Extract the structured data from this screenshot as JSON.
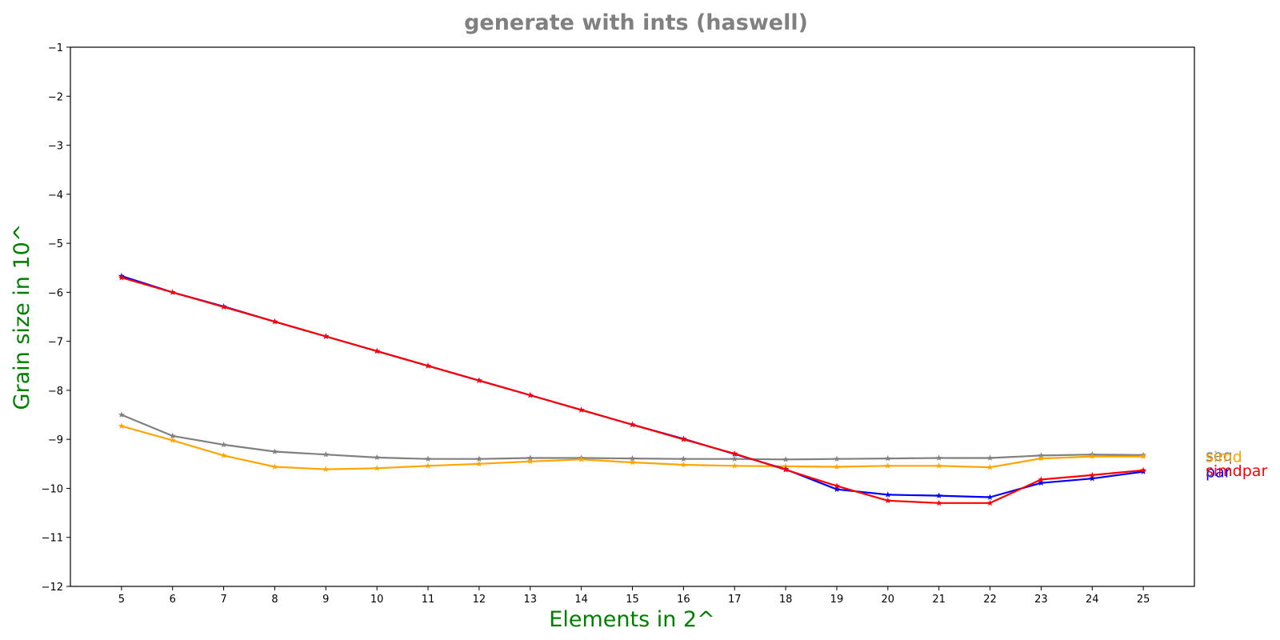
{
  "chart_data": {
    "type": "line",
    "title": "generate with ints  (haswell)",
    "xlabel": "Elements in 2^",
    "ylabel": "Grain size in 10^",
    "xlim": [
      4,
      26
    ],
    "ylim": [
      -12,
      -1
    ],
    "xticks": [
      5,
      6,
      7,
      8,
      9,
      10,
      11,
      12,
      13,
      14,
      15,
      16,
      17,
      18,
      19,
      20,
      21,
      22,
      23,
      24,
      25
    ],
    "yticks": [
      -1,
      -2,
      -3,
      -4,
      -5,
      -6,
      -7,
      -8,
      -9,
      -10,
      -11,
      -12
    ],
    "x": [
      5,
      6,
      7,
      8,
      9,
      10,
      11,
      12,
      13,
      14,
      15,
      16,
      17,
      18,
      19,
      20,
      21,
      22,
      23,
      24,
      25
    ],
    "grid": false,
    "legend": "labels at right end of lines",
    "series": [
      {
        "name": "seq",
        "color": "#808080",
        "marker": "star",
        "values": [
          -8.5,
          -8.93,
          -9.11,
          -9.25,
          -9.31,
          -9.37,
          -9.4,
          -9.4,
          -9.38,
          -9.38,
          -9.39,
          -9.4,
          -9.4,
          -9.41,
          -9.4,
          -9.39,
          -9.38,
          -9.38,
          -9.33,
          -9.31,
          -9.32
        ]
      },
      {
        "name": "simd",
        "color": "#ffa500",
        "marker": "star",
        "values": [
          -8.73,
          -9.02,
          -9.33,
          -9.56,
          -9.61,
          -9.59,
          -9.54,
          -9.5,
          -9.45,
          -9.41,
          -9.47,
          -9.52,
          -9.54,
          -9.55,
          -9.56,
          -9.54,
          -9.54,
          -9.57,
          -9.39,
          -9.35,
          -9.35
        ]
      },
      {
        "name": "par",
        "color": "#0000ff",
        "marker": "star",
        "values": [
          -5.67,
          -6.0,
          -6.29,
          -6.6,
          -6.9,
          -7.2,
          -7.5,
          -7.8,
          -8.1,
          -8.4,
          -8.7,
          -8.99,
          -9.3,
          -9.61,
          -10.02,
          -10.13,
          -10.15,
          -10.18,
          -9.89,
          -9.8,
          -9.66
        ]
      },
      {
        "name": "simdpar",
        "color": "#ff0000",
        "marker": "star",
        "values": [
          -5.7,
          -6.0,
          -6.3,
          -6.6,
          -6.9,
          -7.2,
          -7.5,
          -7.8,
          -8.1,
          -8.4,
          -8.7,
          -9.0,
          -9.29,
          -9.62,
          -9.95,
          -10.25,
          -10.3,
          -10.3,
          -9.82,
          -9.73,
          -9.63
        ]
      }
    ]
  }
}
